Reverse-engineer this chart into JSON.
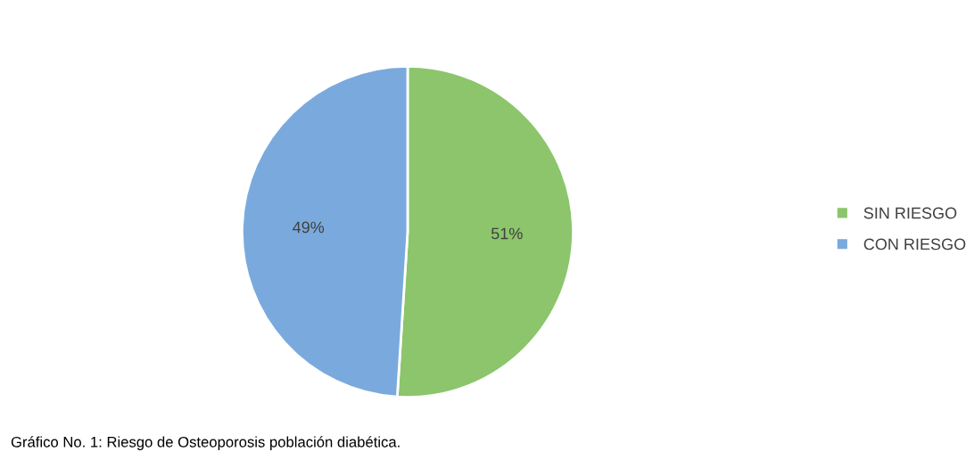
{
  "chart_data": {
    "type": "pie",
    "categories": [
      "SIN RIESGO",
      "CON RIESGO"
    ],
    "values": [
      51,
      49
    ],
    "colors": [
      "#8cc56b",
      "#7aaadd"
    ],
    "value_labels": [
      "51%",
      "49%"
    ],
    "legend": "right",
    "annotations": [
      "Gráfico No. 1: Riesgo de Osteoporosis población diabética."
    ]
  }
}
